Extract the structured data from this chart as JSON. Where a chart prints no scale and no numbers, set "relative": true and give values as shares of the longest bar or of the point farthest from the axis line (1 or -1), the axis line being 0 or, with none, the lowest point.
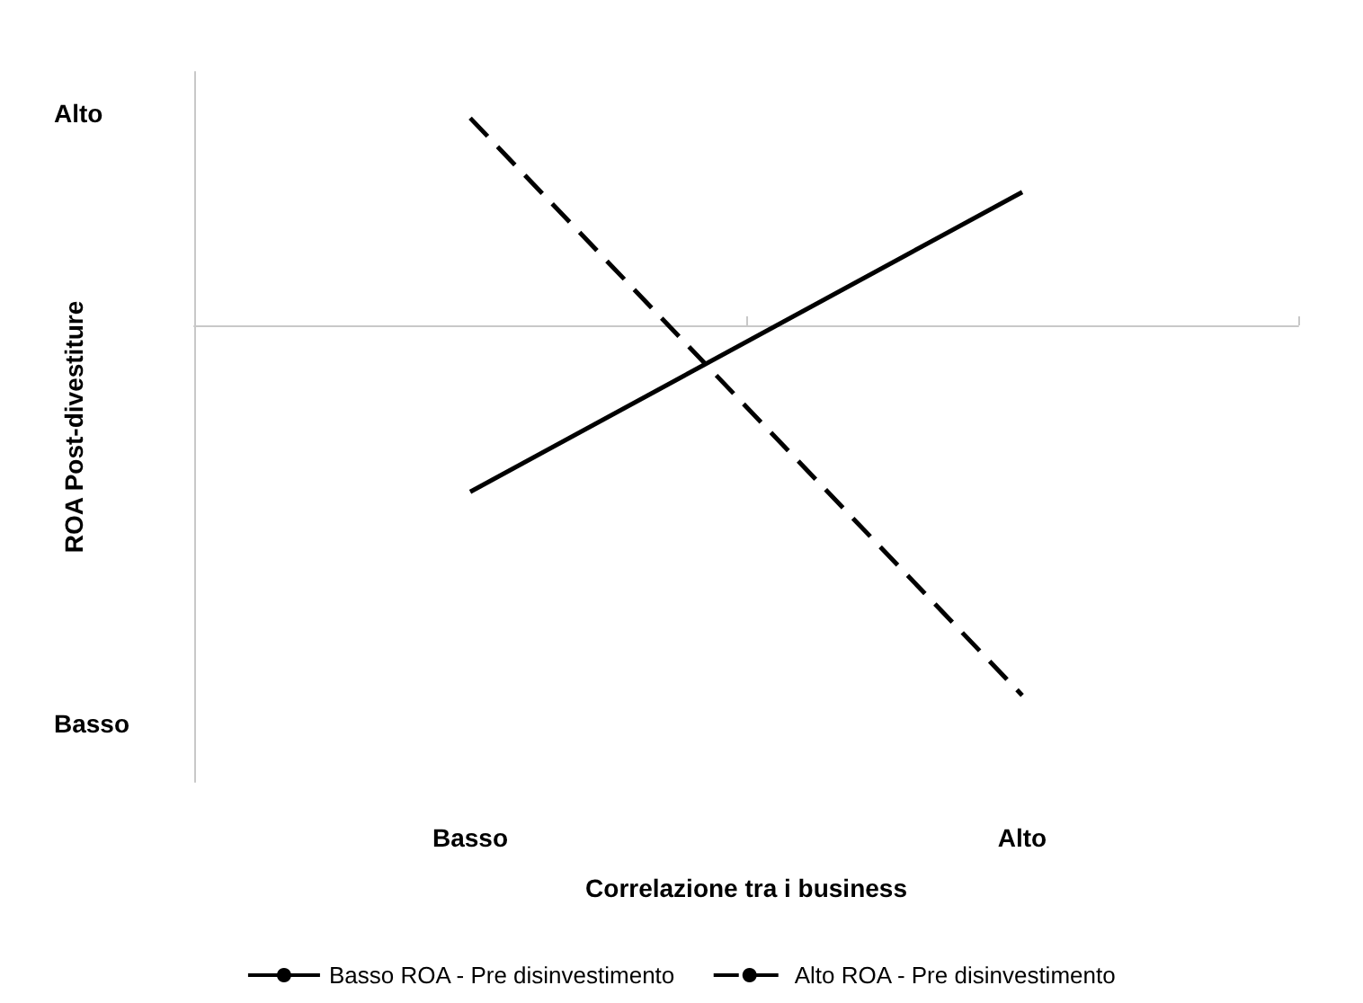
{
  "chart_data": {
    "type": "line",
    "xlabel": "Correlazione tra i business",
    "ylabel": "ROA Post-divestiture",
    "categories": [
      "Basso",
      "Alto"
    ],
    "relative": true,
    "series": [
      {
        "name": "Basso ROA - Pre disinvestimento",
        "color": "#000000",
        "line_style": "solid",
        "values": [
          -0.45,
          0.36
        ]
      },
      {
        "name": "Alto ROA - Pre disinvestimento",
        "color": "#000000",
        "line_style": "dashed",
        "values": [
          0.56,
          -1
        ]
      }
    ],
    "annotations": [
      "Alto",
      "Basso"
    ],
    "marker": "none",
    "grid": false,
    "legend": "bottom"
  }
}
